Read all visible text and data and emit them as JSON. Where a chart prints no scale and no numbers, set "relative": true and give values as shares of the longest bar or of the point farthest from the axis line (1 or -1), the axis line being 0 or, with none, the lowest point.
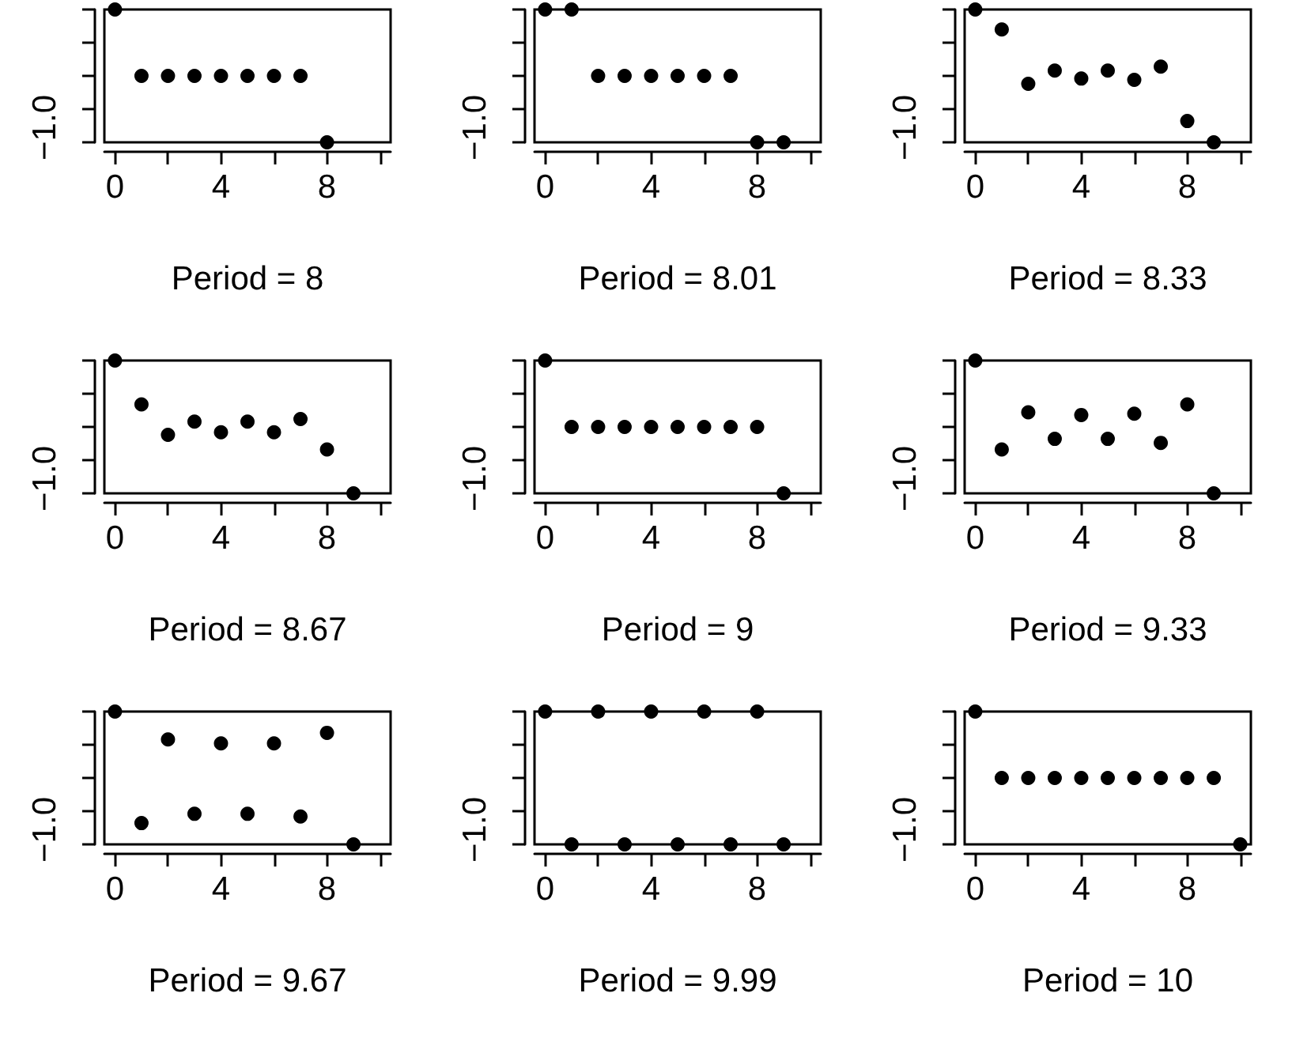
{
  "chart_data": [
    {
      "type": "scatter",
      "relative": true,
      "annotations": [
        "−1.0"
      ],
      "xlabel": "Period = 8",
      "x": [
        0,
        1,
        2,
        3,
        4,
        5,
        6,
        7,
        8
      ],
      "values": [
        1,
        0.5,
        0.5,
        0.5,
        0.5,
        0.5,
        0.5,
        0.5,
        0
      ],
      "color": "#000000",
      "marker": "circle",
      "grid": false,
      "xlim": [
        -0.4,
        10.4
      ],
      "xticks": [
        0,
        {
          "value": 2,
          "label": null
        },
        4,
        {
          "value": 6,
          "label": null
        },
        8,
        {
          "value": 10,
          "label": null
        }
      ]
    },
    {
      "type": "scatter",
      "relative": true,
      "annotations": [
        "−1.0"
      ],
      "xlabel": "Period = 8.01",
      "x": [
        0,
        1,
        2,
        3,
        4,
        5,
        6,
        7,
        8,
        9
      ],
      "values": [
        1,
        1,
        0.5,
        0.5,
        0.5,
        0.5,
        0.5,
        0.5,
        0,
        0
      ],
      "color": "#000000",
      "marker": "circle",
      "grid": false,
      "xlim": [
        -0.4,
        10.4
      ],
      "xticks": [
        0,
        {
          "value": 2,
          "label": null
        },
        4,
        {
          "value": 6,
          "label": null
        },
        8,
        {
          "value": 10,
          "label": null
        }
      ]
    },
    {
      "type": "scatter",
      "relative": true,
      "annotations": [
        "−1.0"
      ],
      "xlabel": "Period = 8.33",
      "x": [
        0,
        1,
        2,
        3,
        4,
        5,
        6,
        7,
        8,
        9
      ],
      "values": [
        1,
        0.85,
        0.44,
        0.54,
        0.48,
        0.54,
        0.47,
        0.57,
        0.16,
        0
      ],
      "color": "#000000",
      "marker": "circle",
      "grid": false,
      "xlim": [
        -0.4,
        10.4
      ],
      "xticks": [
        0,
        {
          "value": 2,
          "label": null
        },
        4,
        {
          "value": 6,
          "label": null
        },
        8,
        {
          "value": 10,
          "label": null
        }
      ]
    },
    {
      "type": "scatter",
      "relative": true,
      "annotations": [
        "−1.0"
      ],
      "xlabel": "Period = 8.67",
      "x": [
        0,
        1,
        2,
        3,
        4,
        5,
        6,
        7,
        8,
        9
      ],
      "values": [
        1,
        0.67,
        0.44,
        0.54,
        0.46,
        0.54,
        0.46,
        0.56,
        0.33,
        0
      ],
      "color": "#000000",
      "marker": "circle",
      "grid": false,
      "xlim": [
        -0.4,
        10.4
      ],
      "xticks": [
        0,
        {
          "value": 2,
          "label": null
        },
        4,
        {
          "value": 6,
          "label": null
        },
        8,
        {
          "value": 10,
          "label": null
        }
      ]
    },
    {
      "type": "scatter",
      "relative": true,
      "annotations": [
        "−1.0"
      ],
      "xlabel": "Period = 9",
      "x": [
        0,
        1,
        2,
        3,
        4,
        5,
        6,
        7,
        8,
        9
      ],
      "values": [
        1,
        0.5,
        0.5,
        0.5,
        0.5,
        0.5,
        0.5,
        0.5,
        0.5,
        0
      ],
      "color": "#000000",
      "marker": "circle",
      "grid": false,
      "xlim": [
        -0.4,
        10.4
      ],
      "xticks": [
        0,
        {
          "value": 2,
          "label": null
        },
        4,
        {
          "value": 6,
          "label": null
        },
        8,
        {
          "value": 10,
          "label": null
        }
      ]
    },
    {
      "type": "scatter",
      "relative": true,
      "annotations": [
        "−1.0"
      ],
      "xlabel": "Period = 9.33",
      "x": [
        0,
        1,
        2,
        3,
        4,
        5,
        6,
        7,
        8,
        9
      ],
      "values": [
        1,
        0.33,
        0.61,
        0.41,
        0.59,
        0.41,
        0.6,
        0.38,
        0.67,
        0
      ],
      "color": "#000000",
      "marker": "circle",
      "grid": false,
      "xlim": [
        -0.4,
        10.4
      ],
      "xticks": [
        0,
        {
          "value": 2,
          "label": null
        },
        4,
        {
          "value": 6,
          "label": null
        },
        8,
        {
          "value": 10,
          "label": null
        }
      ]
    },
    {
      "type": "scatter",
      "relative": true,
      "annotations": [
        "−1.0"
      ],
      "xlabel": "Period = 9.67",
      "x": [
        0,
        1,
        2,
        3,
        4,
        5,
        6,
        7,
        8,
        9
      ],
      "values": [
        1,
        0.16,
        0.79,
        0.23,
        0.76,
        0.23,
        0.76,
        0.21,
        0.84,
        0
      ],
      "color": "#000000",
      "marker": "circle",
      "grid": false,
      "xlim": [
        -0.4,
        10.4
      ],
      "xticks": [
        0,
        {
          "value": 2,
          "label": null
        },
        4,
        {
          "value": 6,
          "label": null
        },
        8,
        {
          "value": 10,
          "label": null
        }
      ]
    },
    {
      "type": "scatter",
      "relative": true,
      "annotations": [
        "−1.0"
      ],
      "xlabel": "Period = 9.99",
      "x": [
        0,
        1,
        2,
        3,
        4,
        5,
        6,
        7,
        8,
        9
      ],
      "values": [
        1,
        0,
        1,
        0,
        1,
        0,
        1,
        0,
        1,
        0
      ],
      "color": "#000000",
      "marker": "circle",
      "grid": false,
      "xlim": [
        -0.4,
        10.4
      ],
      "xticks": [
        0,
        {
          "value": 2,
          "label": null
        },
        4,
        {
          "value": 6,
          "label": null
        },
        8,
        {
          "value": 10,
          "label": null
        }
      ]
    },
    {
      "type": "scatter",
      "relative": true,
      "annotations": [
        "−1.0"
      ],
      "xlabel": "Period = 10",
      "x": [
        0,
        1,
        2,
        3,
        4,
        5,
        6,
        7,
        8,
        9,
        10
      ],
      "values": [
        1,
        0.5,
        0.5,
        0.5,
        0.5,
        0.5,
        0.5,
        0.5,
        0.5,
        0.5,
        0
      ],
      "color": "#000000",
      "marker": "circle",
      "grid": false,
      "xlim": [
        -0.4,
        10.4
      ],
      "xticks": [
        0,
        {
          "value": 2,
          "label": null
        },
        4,
        {
          "value": 6,
          "label": null
        },
        8,
        {
          "value": 10,
          "label": null
        }
      ]
    }
  ]
}
